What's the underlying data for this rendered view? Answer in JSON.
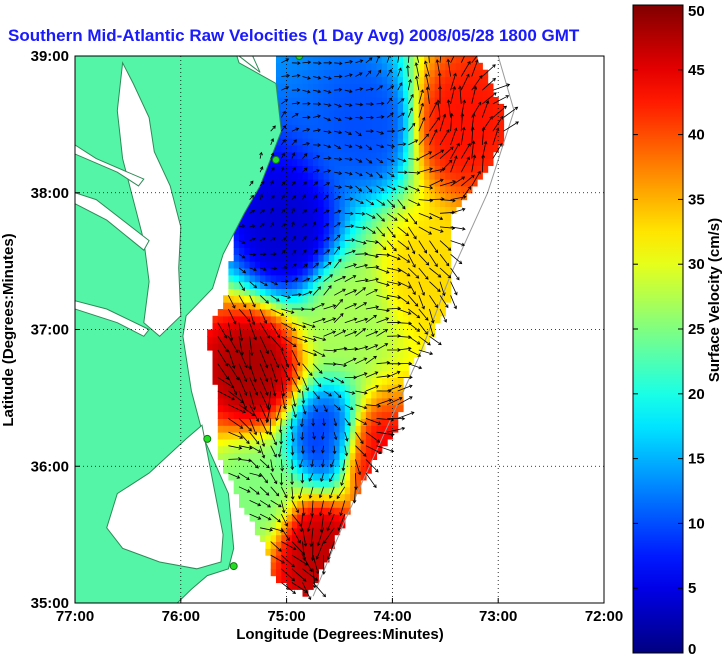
{
  "chart_data": {
    "type": "heatmap",
    "title": "Southern Mid-Atlantic Raw Velocities (1 Day Avg) 2008/05/28 1800 GMT",
    "xlabel": "Longitude (Degrees:Minutes)",
    "ylabel": "Latitude (Degrees:Minutes)",
    "xlim": [
      -77,
      -72
    ],
    "ylim": [
      35,
      39
    ],
    "x_ticks": [
      {
        "value": -77,
        "label": "77:00"
      },
      {
        "value": -76,
        "label": "76:00"
      },
      {
        "value": -75,
        "label": "75:00"
      },
      {
        "value": -74,
        "label": "74:00"
      },
      {
        "value": -73,
        "label": "73:00"
      },
      {
        "value": -72,
        "label": "72:00"
      }
    ],
    "y_ticks": [
      {
        "value": 35,
        "label": "35:00"
      },
      {
        "value": 36,
        "label": "36:00"
      },
      {
        "value": 37,
        "label": "37:00"
      },
      {
        "value": 38,
        "label": "38:00"
      },
      {
        "value": 39,
        "label": "39:00"
      }
    ],
    "grid": true,
    "grid_style": "dotted",
    "colorbar": {
      "label": "Surface Velocity (cm/s)",
      "range": [
        0,
        50
      ],
      "ticks": [
        "0",
        "5",
        "10",
        "15",
        "20",
        "25",
        "30",
        "35",
        "40",
        "45",
        "50"
      ],
      "colormap": "jet",
      "placement": "right"
    },
    "regions": [
      {
        "lon": -74.2,
        "lat": 38.5,
        "speed": 10
      },
      {
        "lon": -75.0,
        "lat": 37.7,
        "speed": 4
      },
      {
        "lon": -73.4,
        "lat": 38.5,
        "speed": 43
      },
      {
        "lon": -73.7,
        "lat": 37.4,
        "speed": 33
      },
      {
        "lon": -74.4,
        "lat": 37.1,
        "speed": 27
      },
      {
        "lon": -75.3,
        "lat": 36.7,
        "speed": 48
      },
      {
        "lon": -74.6,
        "lat": 36.2,
        "speed": 8
      },
      {
        "lon": -74.2,
        "lat": 36.1,
        "speed": 45
      },
      {
        "lon": -74.7,
        "lat": 35.4,
        "speed": 47
      },
      {
        "lon": -75.3,
        "lat": 35.8,
        "speed": 25
      }
    ],
    "colors": {
      "land": "#55f5a8",
      "land_outline": "#2e8b57",
      "water": "#ffffff",
      "title": "#1a1aff",
      "station": "#22dd22"
    }
  }
}
